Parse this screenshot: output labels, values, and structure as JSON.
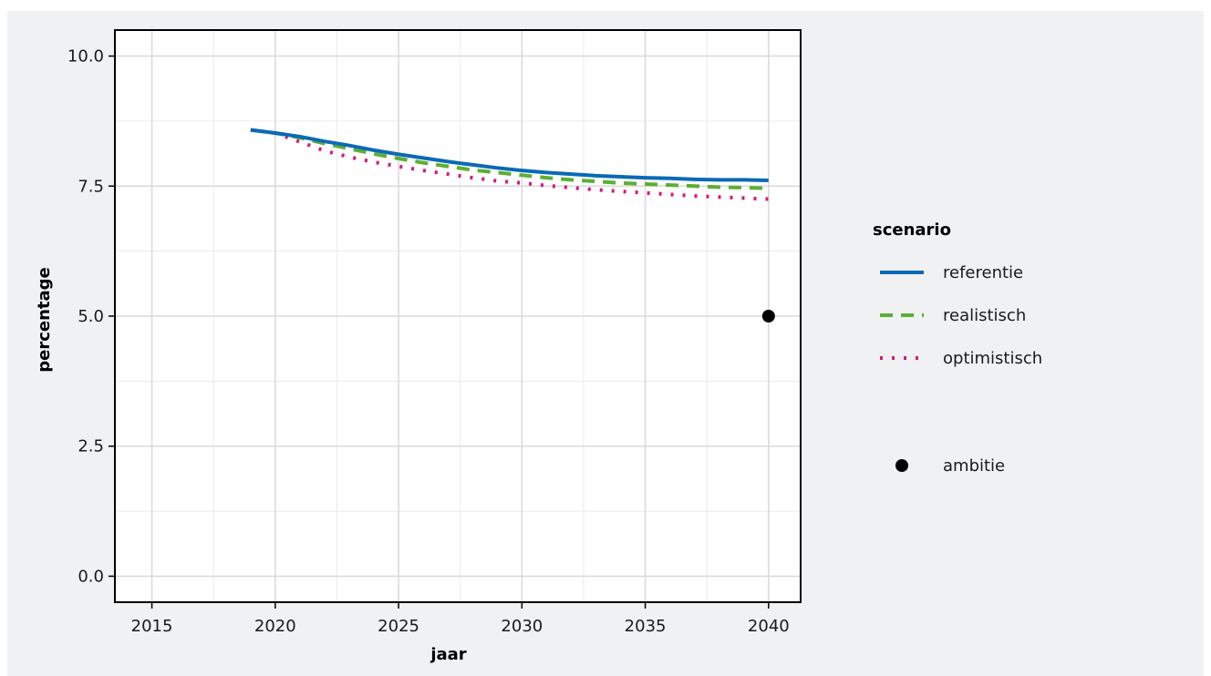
{
  "chart_data": {
    "type": "line",
    "title": "",
    "xlabel": "jaar",
    "ylabel": "percentage",
    "xlim": [
      2013.5,
      2041.3
    ],
    "ylim": [
      -0.5,
      10.5
    ],
    "x_ticks": [
      2015,
      2020,
      2025,
      2030,
      2035,
      2040
    ],
    "y_ticks": [
      0.0,
      2.5,
      5.0,
      7.5,
      10.0
    ],
    "x_tick_labels": [
      "2015",
      "2020",
      "2025",
      "2030",
      "2035",
      "2040"
    ],
    "y_tick_labels": [
      "0.0",
      "2.5",
      "5.0",
      "7.5",
      "10.0"
    ],
    "grid": true,
    "legend_title": "scenario",
    "legend_placement": "right",
    "series": [
      {
        "name": "referentie",
        "color": "#0a6ab5",
        "dash": "solid",
        "x": [
          2019,
          2020,
          2021,
          2022,
          2023,
          2024,
          2025,
          2026,
          2027,
          2028,
          2029,
          2030,
          2031,
          2032,
          2033,
          2034,
          2035,
          2036,
          2037,
          2038,
          2039,
          2040
        ],
        "y": [
          8.58,
          8.52,
          8.45,
          8.36,
          8.28,
          8.19,
          8.11,
          8.04,
          7.97,
          7.91,
          7.85,
          7.8,
          7.76,
          7.73,
          7.7,
          7.68,
          7.66,
          7.65,
          7.63,
          7.62,
          7.62,
          7.61
        ]
      },
      {
        "name": "realistisch",
        "color": "#5ab031",
        "dash": "dashed",
        "x": [
          2019,
          2020,
          2021,
          2022,
          2023,
          2024,
          2025,
          2026,
          2027,
          2028,
          2029,
          2030,
          2031,
          2032,
          2033,
          2034,
          2035,
          2036,
          2037,
          2038,
          2039,
          2040
        ],
        "y": [
          8.58,
          8.52,
          8.43,
          8.32,
          8.22,
          8.12,
          8.03,
          7.95,
          7.88,
          7.81,
          7.76,
          7.71,
          7.66,
          7.62,
          7.59,
          7.56,
          7.54,
          7.52,
          7.5,
          7.48,
          7.47,
          7.46
        ]
      },
      {
        "name": "optimistisch",
        "color": "#d8167a",
        "dash": "dotted",
        "x": [
          2019,
          2020,
          2021,
          2022,
          2023,
          2024,
          2025,
          2026,
          2027,
          2028,
          2029,
          2030,
          2031,
          2032,
          2033,
          2034,
          2035,
          2036,
          2037,
          2038,
          2039,
          2040
        ],
        "y": [
          8.58,
          8.52,
          8.35,
          8.18,
          8.06,
          7.96,
          7.88,
          7.8,
          7.73,
          7.66,
          7.6,
          7.56,
          7.51,
          7.47,
          7.43,
          7.4,
          7.37,
          7.34,
          7.31,
          7.29,
          7.27,
          7.25
        ]
      }
    ],
    "points": [
      {
        "name": "ambitie",
        "color": "#000000",
        "x": 2040,
        "y": 5.0
      }
    ]
  }
}
